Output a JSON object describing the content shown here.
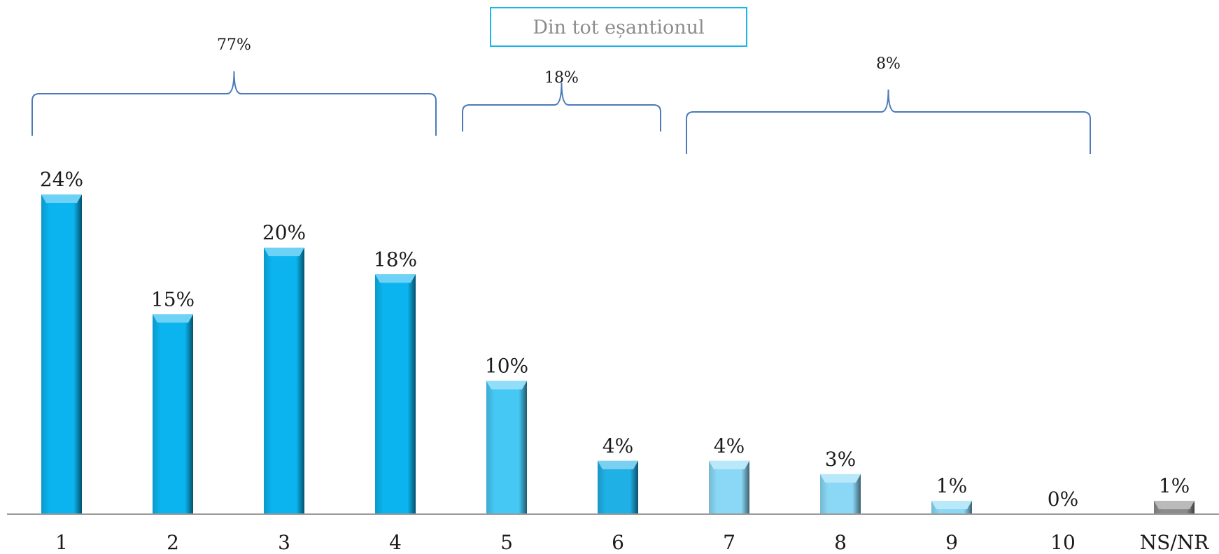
{
  "chart_data": {
    "type": "bar",
    "legend_box": "Din tot eșantionul",
    "categories": [
      "1",
      "2",
      "3",
      "4",
      "5",
      "6",
      "7",
      "8",
      "9",
      "10",
      "NS/NR"
    ],
    "values": [
      24,
      15,
      20,
      18,
      10,
      4,
      4,
      3,
      1,
      0,
      1
    ],
    "value_labels": [
      "24%",
      "15%",
      "20%",
      "18%",
      "10%",
      "4%",
      "4%",
      "3%",
      "1%",
      "0%",
      "1%"
    ],
    "bar_colors": [
      "#0bb4ee",
      "#0bb4ee",
      "#0bb4ee",
      "#0bb4ee",
      "#46c8f5",
      "#1fb0e6",
      "#8ad8f6",
      "#8ad8f6",
      "#8ad8f6",
      "#8ad8f6",
      "#8c8c8c"
    ],
    "ylim": [
      0,
      26
    ],
    "grid": false,
    "groups": [
      {
        "label": "77%",
        "from": "1",
        "to": "4"
      },
      {
        "label": "18%",
        "from": "5",
        "to": "6"
      },
      {
        "label": "8%",
        "from": "7",
        "to": "10"
      }
    ],
    "bracket_color": "#4a7ab8"
  }
}
